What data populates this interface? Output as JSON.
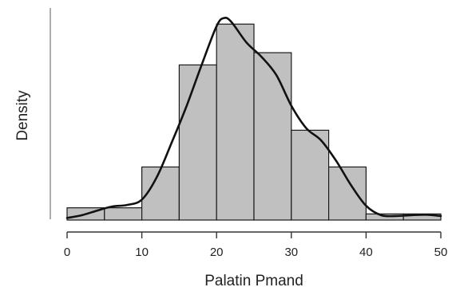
{
  "chart_data": {
    "type": "bar",
    "subtype": "histogram with density curve",
    "xlabel": "Palatin Pmand",
    "ylabel": "Density",
    "xlim": [
      0,
      50
    ],
    "x_ticks": [
      0,
      10,
      20,
      30,
      40,
      50
    ],
    "y_ticks_shown": false,
    "grid": false,
    "legend": "none",
    "bins": [
      {
        "start": 0,
        "end": 5,
        "density": 0.003
      },
      {
        "start": 5,
        "end": 10,
        "density": 0.003
      },
      {
        "start": 10,
        "end": 15,
        "density": 0.013
      },
      {
        "start": 15,
        "end": 20,
        "density": 0.038
      },
      {
        "start": 20,
        "end": 25,
        "density": 0.048
      },
      {
        "start": 25,
        "end": 30,
        "density": 0.041
      },
      {
        "start": 30,
        "end": 35,
        "density": 0.022
      },
      {
        "start": 35,
        "end": 40,
        "density": 0.013
      },
      {
        "start": 40,
        "end": 45,
        "density": 0.0015
      },
      {
        "start": 45,
        "end": 50,
        "density": 0.0015
      }
    ],
    "density_curve": [
      {
        "x": 0,
        "y": 0.0005
      },
      {
        "x": 2,
        "y": 0.0012
      },
      {
        "x": 4,
        "y": 0.0023
      },
      {
        "x": 6,
        "y": 0.0033
      },
      {
        "x": 8,
        "y": 0.0037
      },
      {
        "x": 10,
        "y": 0.005
      },
      {
        "x": 12,
        "y": 0.0105
      },
      {
        "x": 14,
        "y": 0.019
      },
      {
        "x": 16,
        "y": 0.028
      },
      {
        "x": 18,
        "y": 0.038
      },
      {
        "x": 20,
        "y": 0.0475
      },
      {
        "x": 21,
        "y": 0.0495
      },
      {
        "x": 22,
        "y": 0.0485
      },
      {
        "x": 24,
        "y": 0.0435
      },
      {
        "x": 26,
        "y": 0.04
      },
      {
        "x": 28,
        "y": 0.0355
      },
      {
        "x": 30,
        "y": 0.028
      },
      {
        "x": 32,
        "y": 0.0225
      },
      {
        "x": 34,
        "y": 0.0195
      },
      {
        "x": 36,
        "y": 0.0145
      },
      {
        "x": 38,
        "y": 0.0085
      },
      {
        "x": 40,
        "y": 0.0035
      },
      {
        "x": 42,
        "y": 0.0012
      },
      {
        "x": 44,
        "y": 0.001
      },
      {
        "x": 46,
        "y": 0.0012
      },
      {
        "x": 48,
        "y": 0.0013
      },
      {
        "x": 50,
        "y": 0.001
      }
    ],
    "colors": {
      "bar_fill": "#c0c0c0",
      "bar_stroke": "#1a1a1a",
      "curve": "#111111"
    }
  }
}
